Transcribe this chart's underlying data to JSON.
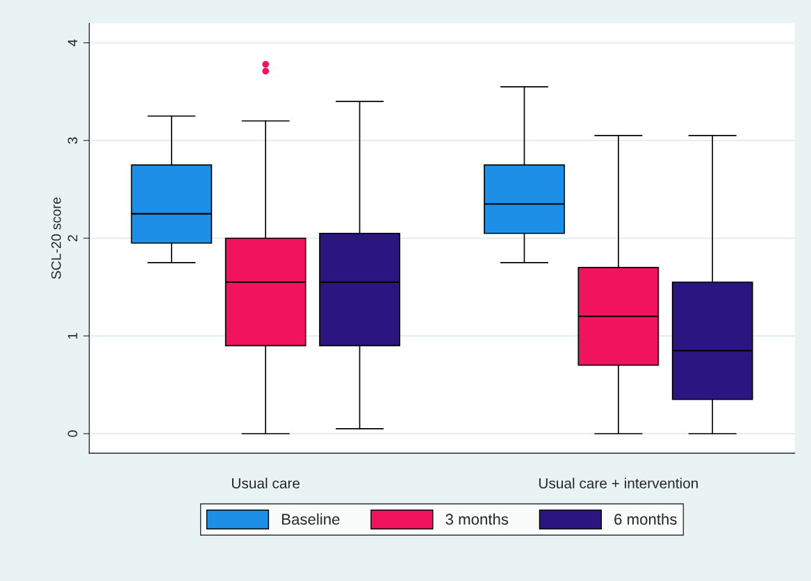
{
  "chart_data": {
    "type": "box",
    "ylabel": "SCL-20 score",
    "categories": [
      "Usual care",
      "Usual care + intervention"
    ],
    "series": [
      {
        "name": "Baseline",
        "color": "#1e8fe6",
        "boxes": [
          {
            "low": 1.75,
            "q1": 1.95,
            "median": 2.25,
            "q3": 2.75,
            "high": 3.25
          },
          {
            "low": 1.75,
            "q1": 2.05,
            "median": 2.35,
            "q3": 2.75,
            "high": 3.55
          }
        ]
      },
      {
        "name": "3 months",
        "color": "#f2135f",
        "boxes": [
          {
            "low": 0,
            "q1": 0.9,
            "median": 1.55,
            "q3": 2.0,
            "high": 3.2,
            "outliers": [
              3.71,
              3.78
            ]
          },
          {
            "low": 0,
            "q1": 0.7,
            "median": 1.2,
            "q3": 1.7,
            "high": 3.05
          }
        ]
      },
      {
        "name": "6 months",
        "color": "#2b1581",
        "boxes": [
          {
            "low": 0.05,
            "q1": 0.9,
            "median": 1.55,
            "q3": 2.05,
            "high": 3.4
          },
          {
            "low": 0,
            "q1": 0.35,
            "median": 0.85,
            "q3": 1.55,
            "high": 3.05
          }
        ]
      }
    ],
    "ylim": [
      -0.2,
      4.2
    ],
    "yticks": [
      0,
      1,
      2,
      3,
      4
    ],
    "grid": "y",
    "legend": "bottom"
  }
}
